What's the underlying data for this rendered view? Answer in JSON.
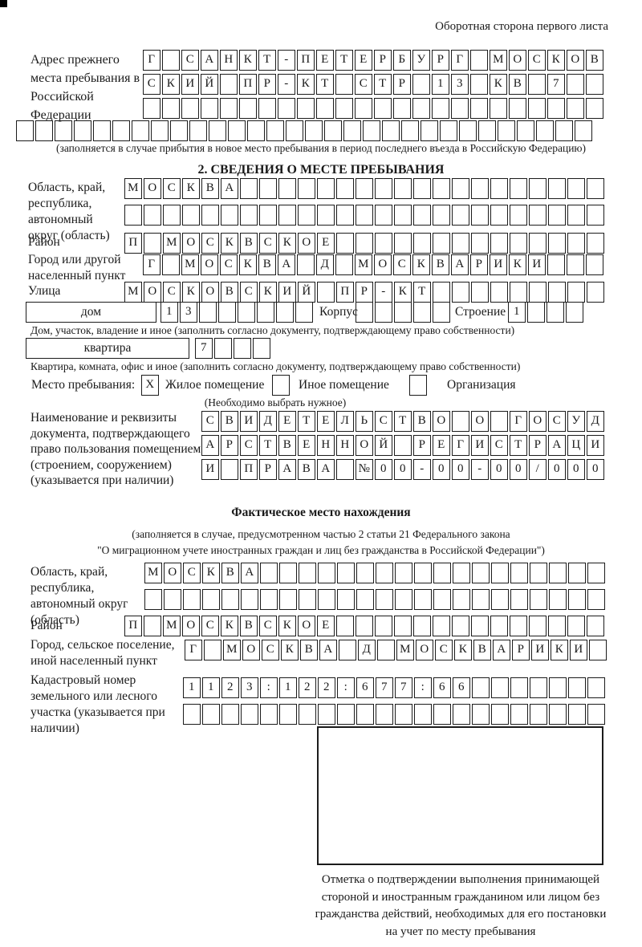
{
  "page": {
    "side_note": "Оборотная сторона первого листа"
  },
  "prev_address": {
    "label": "Адрес прежнего места пребывания в Российской Федерации",
    "rows": [
      "Г САНКТ-ПЕТЕРБУРГ МОСКОВ",
      "СКИЙ ПР-КТ СТР 13 КВ 7  ",
      "                        ",
      "                              "
    ],
    "note": "(заполняется в случае прибытия в новое место пребывания в период последнего въезда в Российскую Федерацию)"
  },
  "stay_info": {
    "heading": "2. СВЕДЕНИЯ О МЕСТЕ ПРЕБЫВАНИЯ",
    "oblast": {
      "label": "Область, край, республика, автономный округ (область)",
      "rows": [
        "МОСКВА                   ",
        "                         "
      ]
    },
    "rayon": {
      "label": "Район",
      "row": "П МОСКВСКОЕ              "
    },
    "gorod": {
      "label": "Город или другой населенный пункт",
      "row": "Г МОСКВА Д МОСКВАРИКИ   "
    },
    "ulitsa": {
      "label": "Улица",
      "row": "МОСКОВСКИЙ ПР-КТ         "
    },
    "dom": {
      "box_label": "дом",
      "row": "13      ",
      "note": "Дом, участок, владение и иное (заполнить согласно документу, подтверждающему право собственности)"
    },
    "korpus": {
      "label": "Корпус",
      "row": "     "
    },
    "stroenie": {
      "label": "Строение",
      "row": "1   "
    },
    "kvartira": {
      "box_label": "квартира",
      "row": "7   ",
      "note": "Квартира, комната, офис и иное (заполнить согласно документу, подтверждающему право собственности)"
    },
    "mesto": {
      "label": "Место пребывания:",
      "options": [
        {
          "label": "Жилое помещение",
          "mark": "X"
        },
        {
          "label": "Иное помещение",
          "mark": ""
        },
        {
          "label": "Организация",
          "mark": ""
        }
      ],
      "note": "(Необходимо выбрать нужное)"
    },
    "document": {
      "label": "Наименование и реквизиты документа, подтверждающего право пользования помещением (строением, сооружением) (указывается при наличии)",
      "rows": [
        "СВИДЕТЕЛЬСТВО О ГОСУД",
        "АРСТВЕННОЙ РЕГИСТРАЦИ",
        "И ПРАВА №00-00-00/000"
      ]
    }
  },
  "actual_location": {
    "heading": "Фактическое место нахождения",
    "note_line1": "(заполняется в случае, предусмотренном частью 2 статьи 21 Федерального закона",
    "note_line2": "\"О миграционном учете иностранных граждан и лиц без гражданства в Российской Федерации\")",
    "oblast": {
      "label": "Область, край, республика, автономный округ (область)",
      "rows": [
        "МОСКВА                  ",
        "                        "
      ]
    },
    "rayon": {
      "label": "Район",
      "row": "П МОСКВСКОЕ              "
    },
    "gorod": {
      "label": "Город, сельское поселение, иной населенный пункт",
      "row": "Г МОСКВА Д МОСКВАРИКИ "
    },
    "kadastr": {
      "label": "Кадастровый номер земельного или лесного участка (указывается при наличии)",
      "rows": [
        "1123:122:677:66       ",
        "                      "
      ]
    }
  },
  "confirmation": {
    "caption": "Отметка о подтверждении выполнения принимающей стороной и иностранным гражданином или лицом без гражданства действий, необходимых для его постановки на учет по месту пребывания"
  }
}
